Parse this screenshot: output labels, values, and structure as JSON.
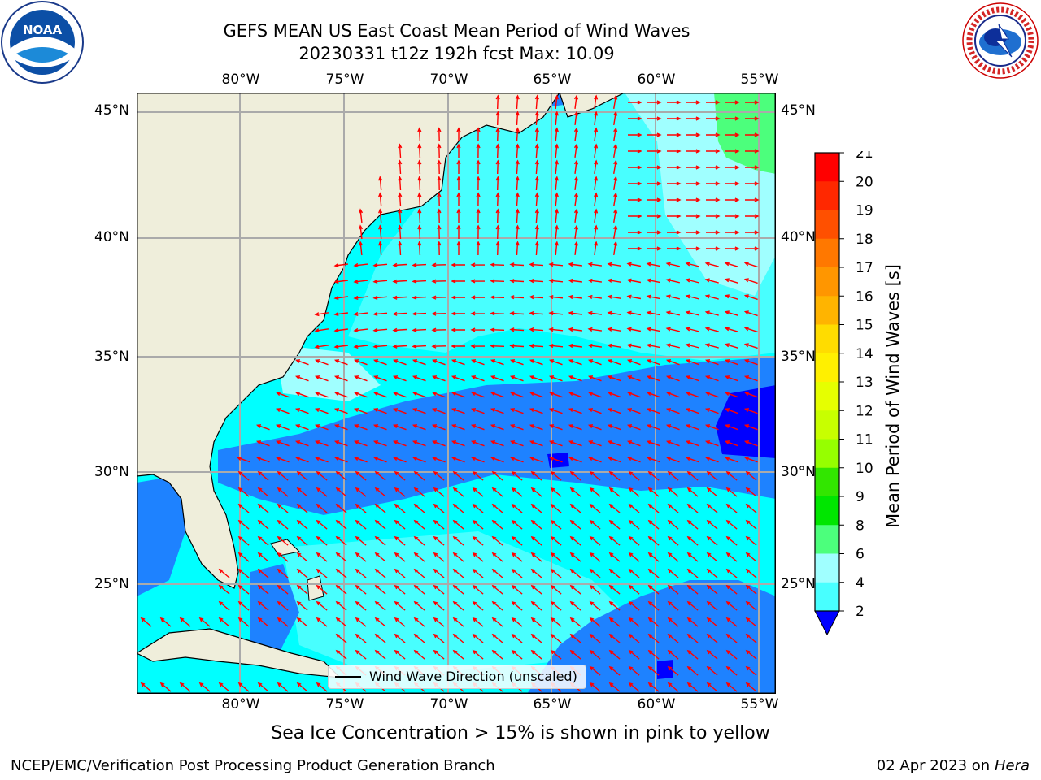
{
  "header": {
    "title_line1": "GEFS MEAN US East Coast Mean Period of Wind Waves",
    "title_line2": "20230331 t12z 192h fcst   Max: 10.09"
  },
  "logos": {
    "left": "NOAA",
    "right": "NATIONAL WEATHER SERVICE"
  },
  "map": {
    "lon_labels": [
      "80°W",
      "75°W",
      "70°W",
      "65°W",
      "60°W",
      "55°W"
    ],
    "lat_labels": [
      "45°N",
      "40°N",
      "35°N",
      "30°N",
      "25°N"
    ],
    "legend_label": "Wind Wave Direction (unscaled)",
    "colors": {
      "land": "#efeedb",
      "c2_4": "#1e82ff",
      "c4_6": "#00ffff",
      "c6_8": "#48ffff",
      "c8_9": "#a0ffff",
      "c9_10": "#4cff7c",
      "below2": "#0000ff",
      "arrow": "#ff0000",
      "grid": "#aaaaaa"
    },
    "region": {
      "lon_range": [
        -85,
        -54
      ],
      "lat_range": [
        20,
        46
      ]
    }
  },
  "colorbar": {
    "title": "Mean Period of Wind Waves [s]",
    "ticks": [
      "21",
      "20",
      "19",
      "18",
      "17",
      "16",
      "15",
      "14",
      "13",
      "12",
      "11",
      "10",
      "9",
      "8",
      "6",
      "4",
      "2"
    ],
    "colors": [
      "#ff0000",
      "#ff2800",
      "#ff5000",
      "#ff7800",
      "#ff9600",
      "#ffb400",
      "#ffdc00",
      "#fff000",
      "#e6ff00",
      "#c8ff00",
      "#96ff00",
      "#32e600",
      "#00e600",
      "#4cff7c",
      "#a0ffff",
      "#48ffff",
      "#00ffff",
      "#1e82ff"
    ],
    "extend_color": "#0000ff"
  },
  "caption": "Sea Ice Concentration > 15% is shown in pink to yellow",
  "footer": {
    "left": "NCEP/EMC/Verification Post Processing Product Generation Branch",
    "right_date": "02 Apr 2023 on ",
    "right_host": "Hera"
  }
}
